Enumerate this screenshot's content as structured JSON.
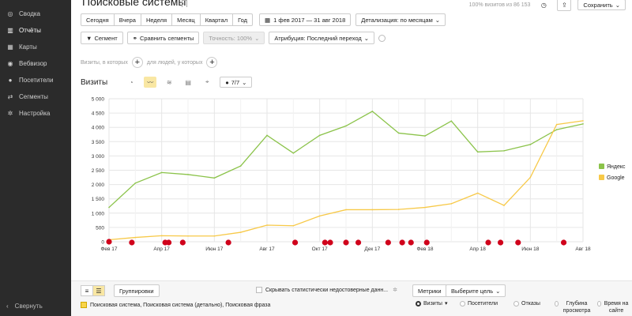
{
  "sidebar": {
    "items": [
      {
        "label": "Сводка",
        "icon": "dashboard-icon"
      },
      {
        "label": "Отчёты",
        "icon": "reports-icon",
        "active": true
      },
      {
        "label": "Карты",
        "icon": "maps-icon"
      },
      {
        "label": "Вебвизор",
        "icon": "webvisor-icon"
      },
      {
        "label": "Посетители",
        "icon": "visitors-icon"
      },
      {
        "label": "Сегменты",
        "icon": "segments-icon"
      },
      {
        "label": "Настройка",
        "icon": "settings-icon"
      }
    ],
    "collapse_label": "Свернуть"
  },
  "header": {
    "title": "Поисковые системы",
    "visits_share": "100% визитов из 86 153",
    "save_label": "Сохранить"
  },
  "period": {
    "buttons": [
      "Сегодня",
      "Вчера",
      "Неделя",
      "Месяц",
      "Квартал",
      "Год"
    ],
    "range": "1 фев 2017 — 31 авг 2018",
    "detail": "Детализация: по месяцам"
  },
  "filters": {
    "segment": "Сегмент",
    "compare": "Сравнить сегменты",
    "accuracy": "Точность: 100%",
    "attribution": "Атрибуция: Последний переход"
  },
  "conditions": {
    "visits_text": "Визиты, в которых",
    "people_text": "для людей, у которых"
  },
  "chart_toolbar": {
    "label": "Визиты",
    "count": "7/7"
  },
  "bottom": {
    "groupings": "Группировки",
    "hide_unreliable": "Скрывать статистически недостоверные данн...",
    "metrics": "Метрики",
    "goal": "Выберите цель",
    "dimension": "Поисковая система, Поисковая система (детально), Поисковая фраза",
    "columns": [
      "Визиты",
      "Посетители",
      "Отказы",
      "Глубина просмотра",
      "Время на сайте"
    ]
  },
  "colors": {
    "yandex": "#8bc34a",
    "google": "#f7c948",
    "sidebar_bg": "#2b2b2b",
    "accent_yellow": "#f9e7a3",
    "annotation_red": "#d0021b"
  },
  "chart_data": {
    "type": "line",
    "x": [
      "Фев 17",
      "Мар 17",
      "Апр 17",
      "Май 17",
      "Июн 17",
      "Июл 17",
      "Авг 17",
      "Сен 17",
      "Окт 17",
      "Ноя 17",
      "Дек 17",
      "Янв 18",
      "Фев 18",
      "Мар 18",
      "Апр 18",
      "Май 18",
      "Июн 18",
      "Июл 18",
      "Авг 18"
    ],
    "xtick_labels": [
      "Фев 17",
      "Апр 17",
      "Июн 17",
      "Авг 17",
      "Окт 17",
      "Дек 17",
      "Фев 18",
      "Апр 18",
      "Июн 18",
      "Авг 18"
    ],
    "yticks": [
      "0",
      "500",
      "1 000",
      "1 500",
      "2 000",
      "2 500",
      "3 000",
      "3 500",
      "4 000",
      "4 500",
      "5 000"
    ],
    "ylim": [
      0,
      5000
    ],
    "series": [
      {
        "name": "Яндекс",
        "values": [
          1200,
          2050,
          2420,
          2350,
          2230,
          2650,
          3720,
          3100,
          3720,
          4050,
          4560,
          3800,
          3700,
          4220,
          3140,
          3180,
          3400,
          3920,
          4120
        ]
      },
      {
        "name": "Google",
        "values": [
          70,
          150,
          210,
          200,
          200,
          330,
          580,
          560,
          900,
          1120,
          1120,
          1130,
          1200,
          1330,
          1700,
          1270,
          2250,
          4100,
          4230
        ]
      }
    ],
    "legend_position": "right",
    "grid": true,
    "annotation_markers": 19
  }
}
